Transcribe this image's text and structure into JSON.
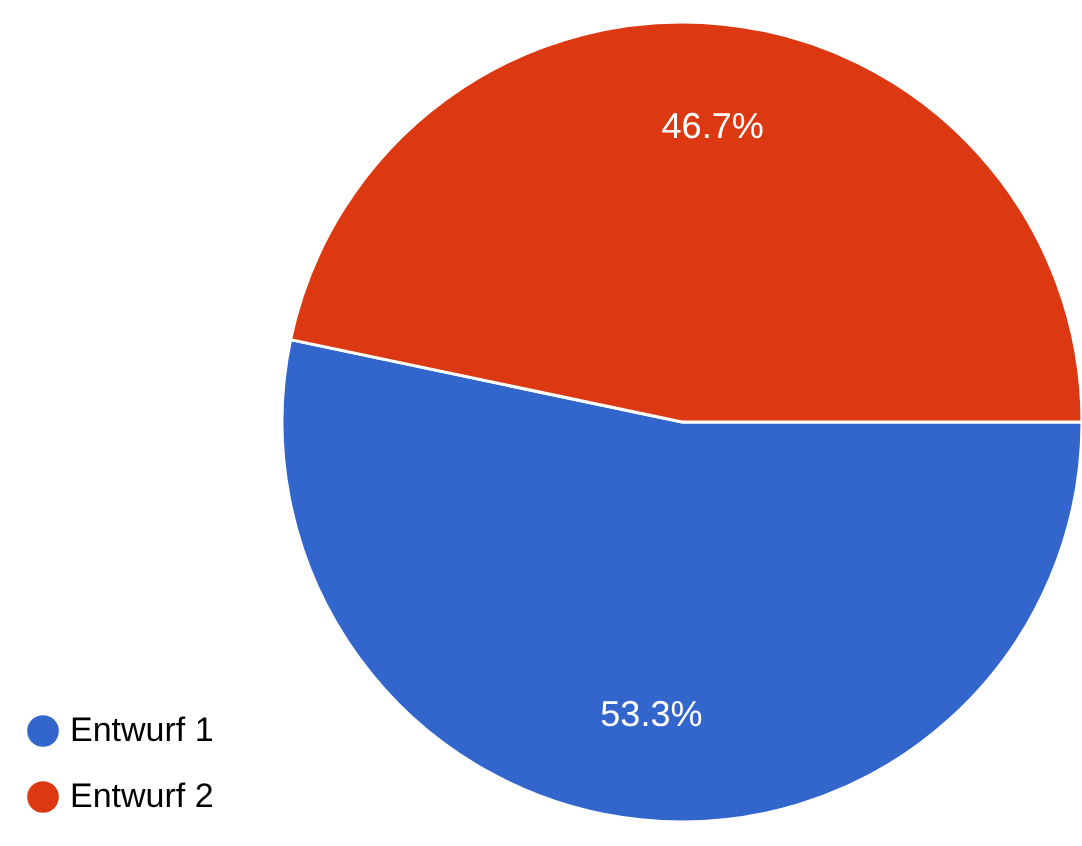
{
  "chart_data": {
    "type": "pie",
    "categories": [
      "Entwurf 1",
      "Entwurf 2"
    ],
    "values": [
      53.3,
      46.7
    ],
    "colors": [
      "#3366cc",
      "#dc3912"
    ],
    "value_labels": [
      "53.3%",
      "46.7%"
    ],
    "legend": "bottom left"
  }
}
